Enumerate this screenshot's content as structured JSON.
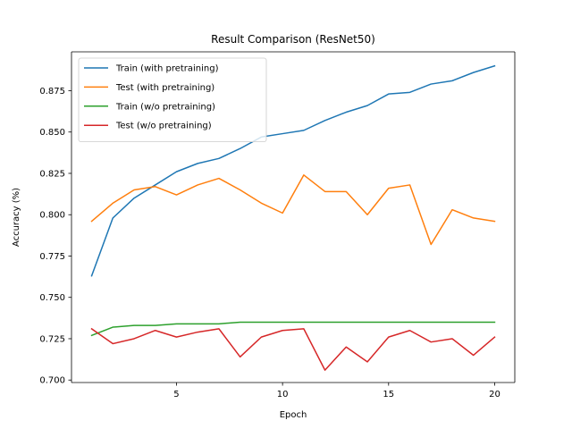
{
  "chart_data": {
    "type": "line",
    "title": "Result Comparison (ResNet50)",
    "xlabel": "Epoch",
    "ylabel": "Accuracy (%)",
    "xlim": [
      0.05,
      20.95
    ],
    "ylim": [
      0.6985,
      0.8985
    ],
    "xticks": [
      5,
      10,
      15,
      20
    ],
    "yticks": [
      0.7,
      0.725,
      0.75,
      0.775,
      0.8,
      0.825,
      0.85,
      0.875
    ],
    "ytick_labels": [
      "0.700",
      "0.725",
      "0.750",
      "0.775",
      "0.800",
      "0.825",
      "0.850",
      "0.875"
    ],
    "legend_position": "upper-left",
    "grid": false,
    "x": [
      1,
      2,
      3,
      4,
      5,
      6,
      7,
      8,
      9,
      10,
      11,
      12,
      13,
      14,
      15,
      16,
      17,
      18,
      19,
      20
    ],
    "series": [
      {
        "name": "Train (with pretraining)",
        "color": "#1f77b4",
        "values": [
          0.763,
          0.798,
          0.81,
          0.818,
          0.826,
          0.831,
          0.834,
          0.84,
          0.847,
          0.849,
          0.851,
          0.857,
          0.862,
          0.866,
          0.873,
          0.874,
          0.879,
          0.881,
          0.886,
          0.89
        ]
      },
      {
        "name": "Test (with pretraining)",
        "color": "#ff7f0e",
        "values": [
          0.796,
          0.807,
          0.815,
          0.817,
          0.812,
          0.818,
          0.822,
          0.815,
          0.807,
          0.801,
          0.824,
          0.814,
          0.814,
          0.8,
          0.816,
          0.818,
          0.782,
          0.803,
          0.798,
          0.796
        ]
      },
      {
        "name": "Train (w/o pretraining)",
        "color": "#2ca02c",
        "values": [
          0.727,
          0.732,
          0.733,
          0.733,
          0.734,
          0.734,
          0.734,
          0.735,
          0.735,
          0.735,
          0.735,
          0.735,
          0.735,
          0.735,
          0.735,
          0.735,
          0.735,
          0.735,
          0.735,
          0.735
        ]
      },
      {
        "name": "Test (w/o pretraining)",
        "color": "#d62728",
        "values": [
          0.731,
          0.722,
          0.725,
          0.73,
          0.726,
          0.729,
          0.731,
          0.714,
          0.726,
          0.73,
          0.731,
          0.706,
          0.72,
          0.711,
          0.726,
          0.73,
          0.723,
          0.725,
          0.715,
          0.726
        ]
      }
    ]
  }
}
